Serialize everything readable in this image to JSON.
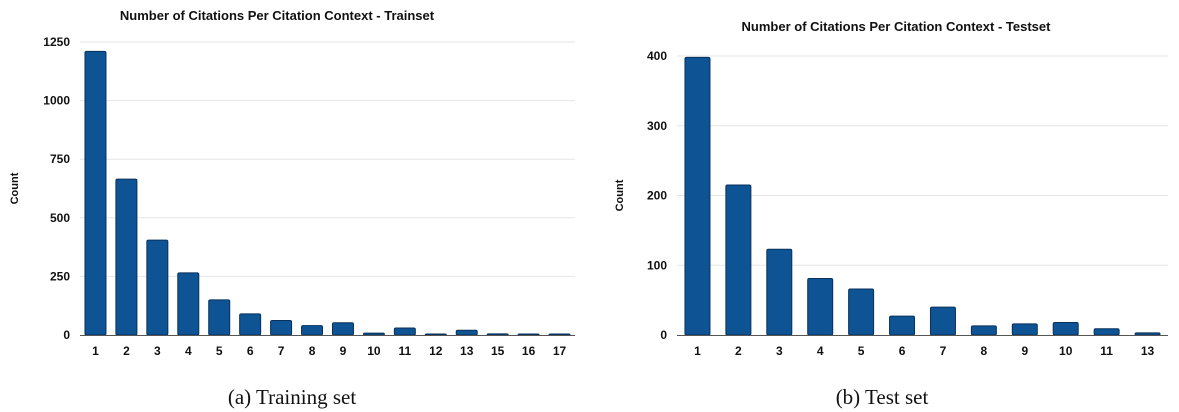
{
  "chart_data": [
    {
      "type": "bar",
      "title": "Number of Citations Per Citation Context - Trainset",
      "xlabel": "",
      "ylabel": "Count",
      "ylim": [
        0,
        1250
      ],
      "yticks": [
        0,
        250,
        500,
        750,
        1000,
        1250
      ],
      "categories": [
        "1",
        "2",
        "3",
        "4",
        "5",
        "6",
        "7",
        "8",
        "9",
        "10",
        "11",
        "12",
        "13",
        "15",
        "16",
        "17"
      ],
      "values": [
        1210,
        665,
        405,
        265,
        150,
        90,
        62,
        40,
        52,
        8,
        30,
        4,
        20,
        5,
        2,
        2
      ],
      "grid": true,
      "caption": "(a) Training set"
    },
    {
      "type": "bar",
      "title": "Number of Citations Per Citation Context - Testset",
      "xlabel": "",
      "ylabel": "Count",
      "ylim": [
        0,
        400
      ],
      "yticks": [
        0,
        100,
        200,
        300,
        400
      ],
      "categories": [
        "1",
        "2",
        "3",
        "4",
        "5",
        "6",
        "7",
        "8",
        "9",
        "10",
        "11",
        "13"
      ],
      "values": [
        398,
        215,
        123,
        81,
        66,
        27,
        40,
        13,
        16,
        18,
        9,
        3
      ],
      "grid": true,
      "caption": "(b) Test set"
    }
  ],
  "colors": {
    "bar": "#0e5394",
    "bar_edge": "#08325c"
  }
}
